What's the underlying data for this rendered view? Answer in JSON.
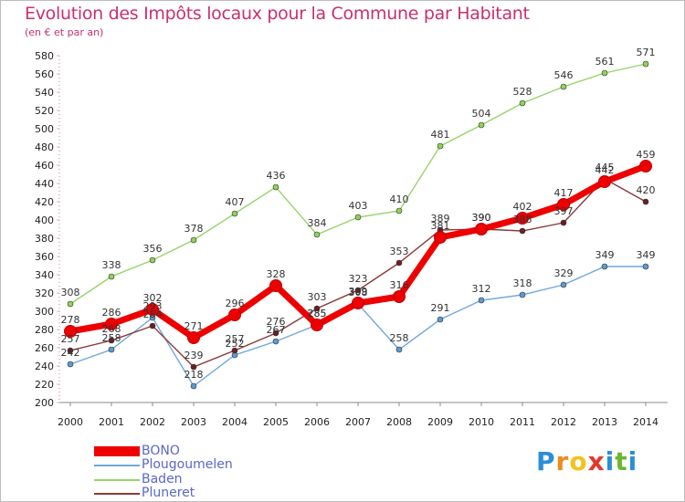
{
  "header": {
    "title": "Evolution des Impôts locaux pour la Commune par Habitant",
    "subtitle": "(en € et par an)"
  },
  "logo": {
    "letters": [
      "P",
      "r",
      "o",
      "x",
      "i",
      "t",
      "i"
    ],
    "colors": [
      "#2a8fd6",
      "#f08a1d",
      "#f2c21a",
      "#e2382b",
      "#2a8fd6",
      "#6ab82e",
      "#2a8fd6"
    ]
  },
  "chart_data": {
    "type": "line",
    "title": "Evolution des Impôts locaux pour la Commune par Habitant",
    "subtitle": "(en € et par an)",
    "xlabel": "",
    "ylabel": "",
    "ylim": [
      200,
      580
    ],
    "ytick_step": 20,
    "grid": false,
    "legend_position": "bottom-left",
    "x": [
      2000,
      2001,
      2002,
      2003,
      2004,
      2005,
      2006,
      2007,
      2008,
      2009,
      2010,
      2011,
      2012,
      2013,
      2014
    ],
    "series": [
      {
        "name": "BONO",
        "color": "#ee0000",
        "line_color": "#ee0000",
        "labels": true,
        "values": [
          278,
          286,
          302,
          271,
          296,
          328,
          285,
          309,
          316,
          381,
          390,
          402,
          417,
          442,
          459
        ]
      },
      {
        "name": "Plougoumelen",
        "color": "#5a9bd3",
        "line_color": "#6fa8dc",
        "labels": true,
        "values": [
          242,
          258,
          293,
          218,
          252,
          267,
          285,
          308,
          258,
          291,
          312,
          318,
          329,
          349,
          349
        ]
      },
      {
        "name": "Baden",
        "color": "#8fd15a",
        "line_color": "#96d46a",
        "labels": true,
        "values": [
          308,
          338,
          356,
          378,
          407,
          436,
          384,
          403,
          410,
          481,
          504,
          528,
          546,
          561,
          571
        ]
      },
      {
        "name": "Pluneret",
        "color": "#6b1f23",
        "line_color": "#8a3a3a",
        "labels": true,
        "values": [
          257,
          268,
          284,
          239,
          257,
          276,
          303,
          323,
          353,
          389,
          390,
          388,
          397,
          445,
          420
        ]
      }
    ]
  }
}
